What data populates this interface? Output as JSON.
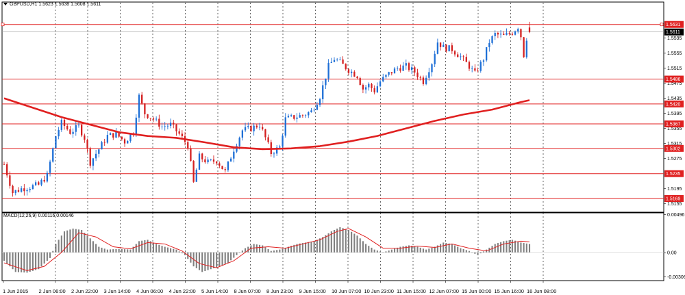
{
  "header": {
    "symbol_title": "GBPUSD,H1  1.5623 1.5638 1.5608 1.5611"
  },
  "macd": {
    "label": "MACD(12,26,9) 0.00116 0.00146",
    "scale_labels": [
      "0.00496",
      "0.00",
      "-0.00306"
    ]
  },
  "colors": {
    "background": "#ffffff",
    "bull_candle": "#1e6fd6",
    "bear_candle": "#d42020",
    "moving_average": "#e02020",
    "level_lines": "#e02020",
    "grid": "#000000",
    "macd_histogram": "#808080",
    "macd_signal": "#e02020",
    "price_badge": "#e02020",
    "current_price_badge": "#000000"
  },
  "chart_data": {
    "type": "candlestick",
    "symbol": "GBPUSD",
    "timeframe": "H1",
    "ohlc_current": {
      "open": 1.5623,
      "high": 1.5638,
      "low": 1.5608,
      "close": 1.5611
    },
    "price_axis_ticks": [
      "1.5595",
      "1.5555",
      "1.5515",
      "1.5475",
      "1.5435",
      "1.5395",
      "1.5355",
      "1.5315",
      "1.5275",
      "1.5195",
      "1.5155"
    ],
    "ylim": [
      1.514,
      1.5665
    ],
    "time_labels": [
      "1 Jun 2015",
      "2 Jun 06:00",
      "2 Jun 22:00",
      "3 Jun 14:00",
      "4 Jun 06:00",
      "4 Jun 22:00",
      "5 Jun 14:00",
      "8 Jun 07:00",
      "8 Jun 23:00",
      "9 Jun 15:00",
      "10 Jun 07:00",
      "10 Jun 23:00",
      "11 Jun 15:00",
      "12 Jun 07:00",
      "15 Jun 00:00",
      "15 Jun 16:00",
      "16 Jun 08:00"
    ],
    "horizontal_levels": [
      1.5631,
      1.5486,
      1.542,
      1.5367,
      1.5302,
      1.5235,
      1.5169
    ],
    "level_labels": [
      "1.5631",
      "1.5486",
      "1.5420",
      "1.5367",
      "1.5302",
      "1.5235",
      "1.5169"
    ],
    "current_price": 1.5611,
    "current_price_label": "1.5611",
    "close_path": [
      {
        "x": 0,
        "y": 1.526
      },
      {
        "x": 3,
        "y": 1.5185
      },
      {
        "x": 6,
        "y": 1.5195
      },
      {
        "x": 9,
        "y": 1.52
      },
      {
        "x": 12,
        "y": 1.5205
      },
      {
        "x": 15,
        "y": 1.523
      },
      {
        "x": 18,
        "y": 1.5335
      },
      {
        "x": 20,
        "y": 1.537
      },
      {
        "x": 23,
        "y": 1.5345
      },
      {
        "x": 26,
        "y": 1.536
      },
      {
        "x": 28,
        "y": 1.533
      },
      {
        "x": 30,
        "y": 1.5265
      },
      {
        "x": 33,
        "y": 1.53
      },
      {
        "x": 36,
        "y": 1.5335
      },
      {
        "x": 39,
        "y": 1.534
      },
      {
        "x": 42,
        "y": 1.532
      },
      {
        "x": 45,
        "y": 1.5345
      },
      {
        "x": 47,
        "y": 1.544
      },
      {
        "x": 49,
        "y": 1.5395
      },
      {
        "x": 52,
        "y": 1.538
      },
      {
        "x": 55,
        "y": 1.536
      },
      {
        "x": 58,
        "y": 1.5365
      },
      {
        "x": 61,
        "y": 1.534
      },
      {
        "x": 64,
        "y": 1.531
      },
      {
        "x": 66,
        "y": 1.521
      },
      {
        "x": 68,
        "y": 1.528
      },
      {
        "x": 71,
        "y": 1.5265
      },
      {
        "x": 74,
        "y": 1.527
      },
      {
        "x": 77,
        "y": 1.524
      },
      {
        "x": 80,
        "y": 1.53
      },
      {
        "x": 83,
        "y": 1.535
      },
      {
        "x": 86,
        "y": 1.5355
      },
      {
        "x": 89,
        "y": 1.5365
      },
      {
        "x": 91,
        "y": 1.533
      },
      {
        "x": 93,
        "y": 1.529
      },
      {
        "x": 96,
        "y": 1.5305
      },
      {
        "x": 98,
        "y": 1.538
      },
      {
        "x": 101,
        "y": 1.5385
      },
      {
        "x": 104,
        "y": 1.539
      },
      {
        "x": 107,
        "y": 1.54
      },
      {
        "x": 110,
        "y": 1.544
      },
      {
        "x": 113,
        "y": 1.552
      },
      {
        "x": 115,
        "y": 1.554
      },
      {
        "x": 117,
        "y": 1.553
      },
      {
        "x": 120,
        "y": 1.551
      },
      {
        "x": 123,
        "y": 1.5495
      },
      {
        "x": 125,
        "y": 1.546
      },
      {
        "x": 127,
        "y": 1.547
      },
      {
        "x": 129,
        "y": 1.5455
      },
      {
        "x": 131,
        "y": 1.548
      },
      {
        "x": 134,
        "y": 1.55
      },
      {
        "x": 137,
        "y": 1.5515
      },
      {
        "x": 140,
        "y": 1.552
      },
      {
        "x": 143,
        "y": 1.5505
      },
      {
        "x": 146,
        "y": 1.548
      },
      {
        "x": 149,
        "y": 1.553
      },
      {
        "x": 151,
        "y": 1.5585
      },
      {
        "x": 153,
        "y": 1.557
      },
      {
        "x": 156,
        "y": 1.5565
      },
      {
        "x": 159,
        "y": 1.5545
      },
      {
        "x": 162,
        "y": 1.552
      },
      {
        "x": 164,
        "y": 1.55
      },
      {
        "x": 167,
        "y": 1.554
      },
      {
        "x": 169,
        "y": 1.5585
      },
      {
        "x": 171,
        "y": 1.5605
      },
      {
        "x": 174,
        "y": 1.56
      },
      {
        "x": 177,
        "y": 1.561
      },
      {
        "x": 179,
        "y": 1.5625
      },
      {
        "x": 180,
        "y": 1.56
      },
      {
        "x": 181,
        "y": 1.555
      },
      {
        "x": 182,
        "y": 1.5595
      },
      {
        "x": 183,
        "y": 1.5611
      }
    ],
    "moving_average": [
      {
        "x": 0,
        "y": 1.5435
      },
      {
        "x": 10,
        "y": 1.541
      },
      {
        "x": 20,
        "y": 1.5385
      },
      {
        "x": 30,
        "y": 1.5365
      },
      {
        "x": 40,
        "y": 1.5345
      },
      {
        "x": 50,
        "y": 1.5335
      },
      {
        "x": 60,
        "y": 1.533
      },
      {
        "x": 70,
        "y": 1.5318
      },
      {
        "x": 80,
        "y": 1.5305
      },
      {
        "x": 90,
        "y": 1.53
      },
      {
        "x": 100,
        "y": 1.5302
      },
      {
        "x": 110,
        "y": 1.5308
      },
      {
        "x": 120,
        "y": 1.532
      },
      {
        "x": 130,
        "y": 1.5335
      },
      {
        "x": 140,
        "y": 1.5355
      },
      {
        "x": 150,
        "y": 1.5375
      },
      {
        "x": 160,
        "y": 1.5392
      },
      {
        "x": 170,
        "y": 1.5405
      },
      {
        "x": 180,
        "y": 1.5425
      },
      {
        "x": 183,
        "y": 1.543
      }
    ],
    "macd_ylim": [
      -0.00306,
      0.00496
    ],
    "macd_histogram": [
      {
        "x": 0,
        "y": -0.0012
      },
      {
        "x": 4,
        "y": -0.0028
      },
      {
        "x": 8,
        "y": -0.0029
      },
      {
        "x": 12,
        "y": -0.0024
      },
      {
        "x": 16,
        "y": -0.0008
      },
      {
        "x": 18,
        "y": 0.0012
      },
      {
        "x": 21,
        "y": 0.003
      },
      {
        "x": 24,
        "y": 0.0034
      },
      {
        "x": 27,
        "y": 0.0032
      },
      {
        "x": 30,
        "y": 0.002
      },
      {
        "x": 33,
        "y": 0.0008
      },
      {
        "x": 36,
        "y": 0.0004
      },
      {
        "x": 40,
        "y": 0.0005
      },
      {
        "x": 44,
        "y": 0.0004
      },
      {
        "x": 47,
        "y": 0.0016
      },
      {
        "x": 50,
        "y": 0.0018
      },
      {
        "x": 53,
        "y": 0.0012
      },
      {
        "x": 56,
        "y": 0.0008
      },
      {
        "x": 60,
        "y": 0.0004
      },
      {
        "x": 63,
        "y": -0.0004
      },
      {
        "x": 66,
        "y": -0.002
      },
      {
        "x": 69,
        "y": -0.0028
      },
      {
        "x": 72,
        "y": -0.0024
      },
      {
        "x": 75,
        "y": -0.002
      },
      {
        "x": 78,
        "y": -0.0015
      },
      {
        "x": 81,
        "y": -0.0004
      },
      {
        "x": 84,
        "y": 0.0006
      },
      {
        "x": 87,
        "y": 0.0012
      },
      {
        "x": 90,
        "y": 0.001
      },
      {
        "x": 93,
        "y": 0.0002
      },
      {
        "x": 96,
        "y": 0.0004
      },
      {
        "x": 99,
        "y": 0.0008
      },
      {
        "x": 102,
        "y": 0.0012
      },
      {
        "x": 105,
        "y": 0.0014
      },
      {
        "x": 108,
        "y": 0.0016
      },
      {
        "x": 111,
        "y": 0.0022
      },
      {
        "x": 114,
        "y": 0.003
      },
      {
        "x": 117,
        "y": 0.0036
      },
      {
        "x": 120,
        "y": 0.0032
      },
      {
        "x": 123,
        "y": 0.0024
      },
      {
        "x": 126,
        "y": 0.0012
      },
      {
        "x": 129,
        "y": 0.0004
      },
      {
        "x": 132,
        "y": 0.0
      },
      {
        "x": 135,
        "y": 0.0004
      },
      {
        "x": 138,
        "y": 0.0008
      },
      {
        "x": 141,
        "y": 0.001
      },
      {
        "x": 144,
        "y": 0.0008
      },
      {
        "x": 147,
        "y": 0.0004
      },
      {
        "x": 150,
        "y": 0.0008
      },
      {
        "x": 153,
        "y": 0.0014
      },
      {
        "x": 156,
        "y": 0.0012
      },
      {
        "x": 159,
        "y": 0.0006
      },
      {
        "x": 162,
        "y": 0.0002
      },
      {
        "x": 165,
        "y": -0.0004
      },
      {
        "x": 168,
        "y": 0.0004
      },
      {
        "x": 171,
        "y": 0.0012
      },
      {
        "x": 174,
        "y": 0.0016
      },
      {
        "x": 177,
        "y": 0.0018
      },
      {
        "x": 180,
        "y": 0.0014
      },
      {
        "x": 183,
        "y": 0.0012
      }
    ],
    "macd_signal": [
      {
        "x": 0,
        "y": -0.0015
      },
      {
        "x": 8,
        "y": -0.0026
      },
      {
        "x": 14,
        "y": -0.002
      },
      {
        "x": 20,
        "y": 0.0
      },
      {
        "x": 26,
        "y": 0.0028
      },
      {
        "x": 32,
        "y": 0.0022
      },
      {
        "x": 38,
        "y": 0.0008
      },
      {
        "x": 44,
        "y": 0.0005
      },
      {
        "x": 50,
        "y": 0.0014
      },
      {
        "x": 56,
        "y": 0.0012
      },
      {
        "x": 62,
        "y": 0.0002
      },
      {
        "x": 68,
        "y": -0.0016
      },
      {
        "x": 74,
        "y": -0.0022
      },
      {
        "x": 80,
        "y": -0.0012
      },
      {
        "x": 86,
        "y": 0.0006
      },
      {
        "x": 92,
        "y": 0.0008
      },
      {
        "x": 98,
        "y": 0.0006
      },
      {
        "x": 104,
        "y": 0.0012
      },
      {
        "x": 110,
        "y": 0.0018
      },
      {
        "x": 116,
        "y": 0.003
      },
      {
        "x": 120,
        "y": 0.0034
      },
      {
        "x": 126,
        "y": 0.0022
      },
      {
        "x": 132,
        "y": 0.0006
      },
      {
        "x": 138,
        "y": 0.0006
      },
      {
        "x": 144,
        "y": 0.0009
      },
      {
        "x": 150,
        "y": 0.0007
      },
      {
        "x": 156,
        "y": 0.0012
      },
      {
        "x": 162,
        "y": 0.0006
      },
      {
        "x": 168,
        "y": 0.0002
      },
      {
        "x": 174,
        "y": 0.0012
      },
      {
        "x": 180,
        "y": 0.0016
      },
      {
        "x": 183,
        "y": 0.0015
      }
    ],
    "grid": true
  }
}
